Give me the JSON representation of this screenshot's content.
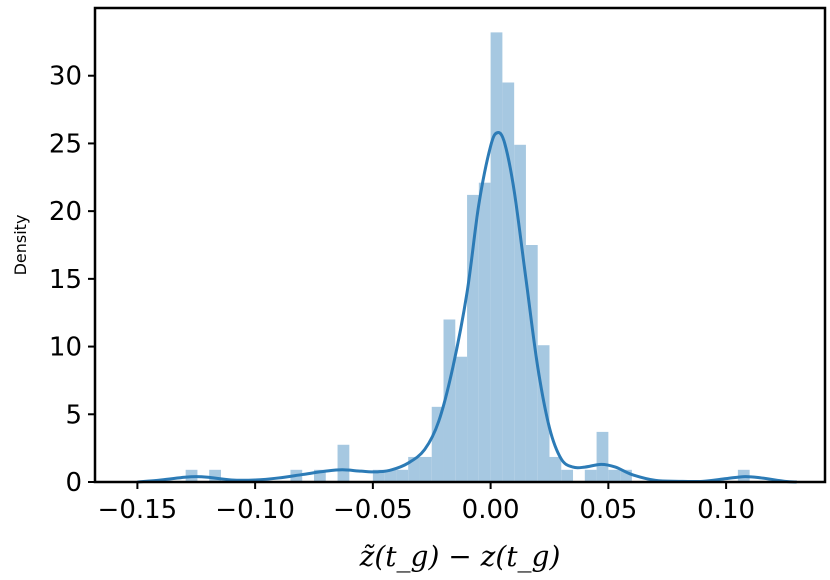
{
  "chart_data": {
    "type": "bar",
    "title": "",
    "xlabel": "z̃(t_g) − z(t_g)",
    "ylabel": "Density",
    "xlim": [
      -0.168,
      0.142
    ],
    "ylim": [
      0,
      35
    ],
    "grid": false,
    "xticks": [
      {
        "value": -0.15,
        "label": "−0.15"
      },
      {
        "value": -0.1,
        "label": "−0.10"
      },
      {
        "value": -0.05,
        "label": "−0.05"
      },
      {
        "value": 0.0,
        "label": "0.00"
      },
      {
        "value": 0.05,
        "label": "0.05"
      },
      {
        "value": 0.1,
        "label": "0.10"
      }
    ],
    "yticks": [
      {
        "value": 0,
        "label": "0"
      },
      {
        "value": 5,
        "label": "5"
      },
      {
        "value": 10,
        "label": "10"
      },
      {
        "value": 15,
        "label": "15"
      },
      {
        "value": 20,
        "label": "20"
      },
      {
        "value": 25,
        "label": "25"
      },
      {
        "value": 30,
        "label": "30"
      }
    ],
    "histogram": {
      "color": "#a6c8e1",
      "bins": [
        {
          "x0": -0.1295,
          "x1": -0.1245,
          "y": 0.9
        },
        {
          "x0": -0.1195,
          "x1": -0.1145,
          "y": 0.9
        },
        {
          "x0": -0.085,
          "x1": -0.08,
          "y": 0.9
        },
        {
          "x0": -0.075,
          "x1": -0.07,
          "y": 0.9
        },
        {
          "x0": -0.065,
          "x1": -0.06,
          "y": 2.75
        },
        {
          "x0": -0.05,
          "x1": -0.045,
          "y": 0.9
        },
        {
          "x0": -0.045,
          "x1": -0.04,
          "y": 0.9
        },
        {
          "x0": -0.04,
          "x1": -0.035,
          "y": 0.9
        },
        {
          "x0": -0.035,
          "x1": -0.03,
          "y": 1.85
        },
        {
          "x0": -0.03,
          "x1": -0.025,
          "y": 1.85
        },
        {
          "x0": -0.025,
          "x1": -0.02,
          "y": 5.55
        },
        {
          "x0": -0.02,
          "x1": -0.015,
          "y": 12.0
        },
        {
          "x0": -0.015,
          "x1": -0.01,
          "y": 9.25
        },
        {
          "x0": -0.01,
          "x1": -0.005,
          "y": 21.2
        },
        {
          "x0": -0.005,
          "x1": 0.0,
          "y": 22.1
        },
        {
          "x0": 0.0,
          "x1": 0.005,
          "y": 33.2
        },
        {
          "x0": 0.005,
          "x1": 0.01,
          "y": 29.5
        },
        {
          "x0": 0.01,
          "x1": 0.015,
          "y": 24.9
        },
        {
          "x0": 0.015,
          "x1": 0.02,
          "y": 17.5
        },
        {
          "x0": 0.02,
          "x1": 0.025,
          "y": 10.1
        },
        {
          "x0": 0.025,
          "x1": 0.03,
          "y": 1.85
        },
        {
          "x0": 0.03,
          "x1": 0.035,
          "y": 0.9
        },
        {
          "x0": 0.04,
          "x1": 0.045,
          "y": 0.9
        },
        {
          "x0": 0.045,
          "x1": 0.05,
          "y": 3.7
        },
        {
          "x0": 0.05,
          "x1": 0.055,
          "y": 0.9
        },
        {
          "x0": 0.055,
          "x1": 0.06,
          "y": 0.9
        },
        {
          "x0": 0.105,
          "x1": 0.11,
          "y": 0.9
        }
      ]
    },
    "kde": {
      "color": "#2c7bb6",
      "points": [
        [
          -0.15,
          0.0
        ],
        [
          -0.14,
          0.15
        ],
        [
          -0.13,
          0.35
        ],
        [
          -0.125,
          0.4
        ],
        [
          -0.12,
          0.35
        ],
        [
          -0.11,
          0.15
        ],
        [
          -0.1,
          0.15
        ],
        [
          -0.09,
          0.3
        ],
        [
          -0.08,
          0.55
        ],
        [
          -0.07,
          0.8
        ],
        [
          -0.063,
          0.9
        ],
        [
          -0.055,
          0.8
        ],
        [
          -0.048,
          0.75
        ],
        [
          -0.042,
          0.9
        ],
        [
          -0.035,
          1.4
        ],
        [
          -0.028,
          2.4
        ],
        [
          -0.022,
          4.5
        ],
        [
          -0.016,
          8.5
        ],
        [
          -0.01,
          14.0
        ],
        [
          -0.005,
          20.5
        ],
        [
          0.0,
          24.8
        ],
        [
          0.003,
          25.8
        ],
        [
          0.006,
          25.0
        ],
        [
          0.01,
          21.5
        ],
        [
          0.015,
          15.0
        ],
        [
          0.02,
          8.5
        ],
        [
          0.025,
          4.0
        ],
        [
          0.03,
          1.7
        ],
        [
          0.035,
          1.1
        ],
        [
          0.04,
          1.1
        ],
        [
          0.047,
          1.3
        ],
        [
          0.053,
          1.1
        ],
        [
          0.06,
          0.55
        ],
        [
          0.07,
          0.12
        ],
        [
          0.08,
          0.05
        ],
        [
          0.09,
          0.05
        ],
        [
          0.1,
          0.25
        ],
        [
          0.108,
          0.4
        ],
        [
          0.115,
          0.3
        ],
        [
          0.125,
          0.05
        ],
        [
          0.13,
          0.0
        ]
      ]
    }
  }
}
